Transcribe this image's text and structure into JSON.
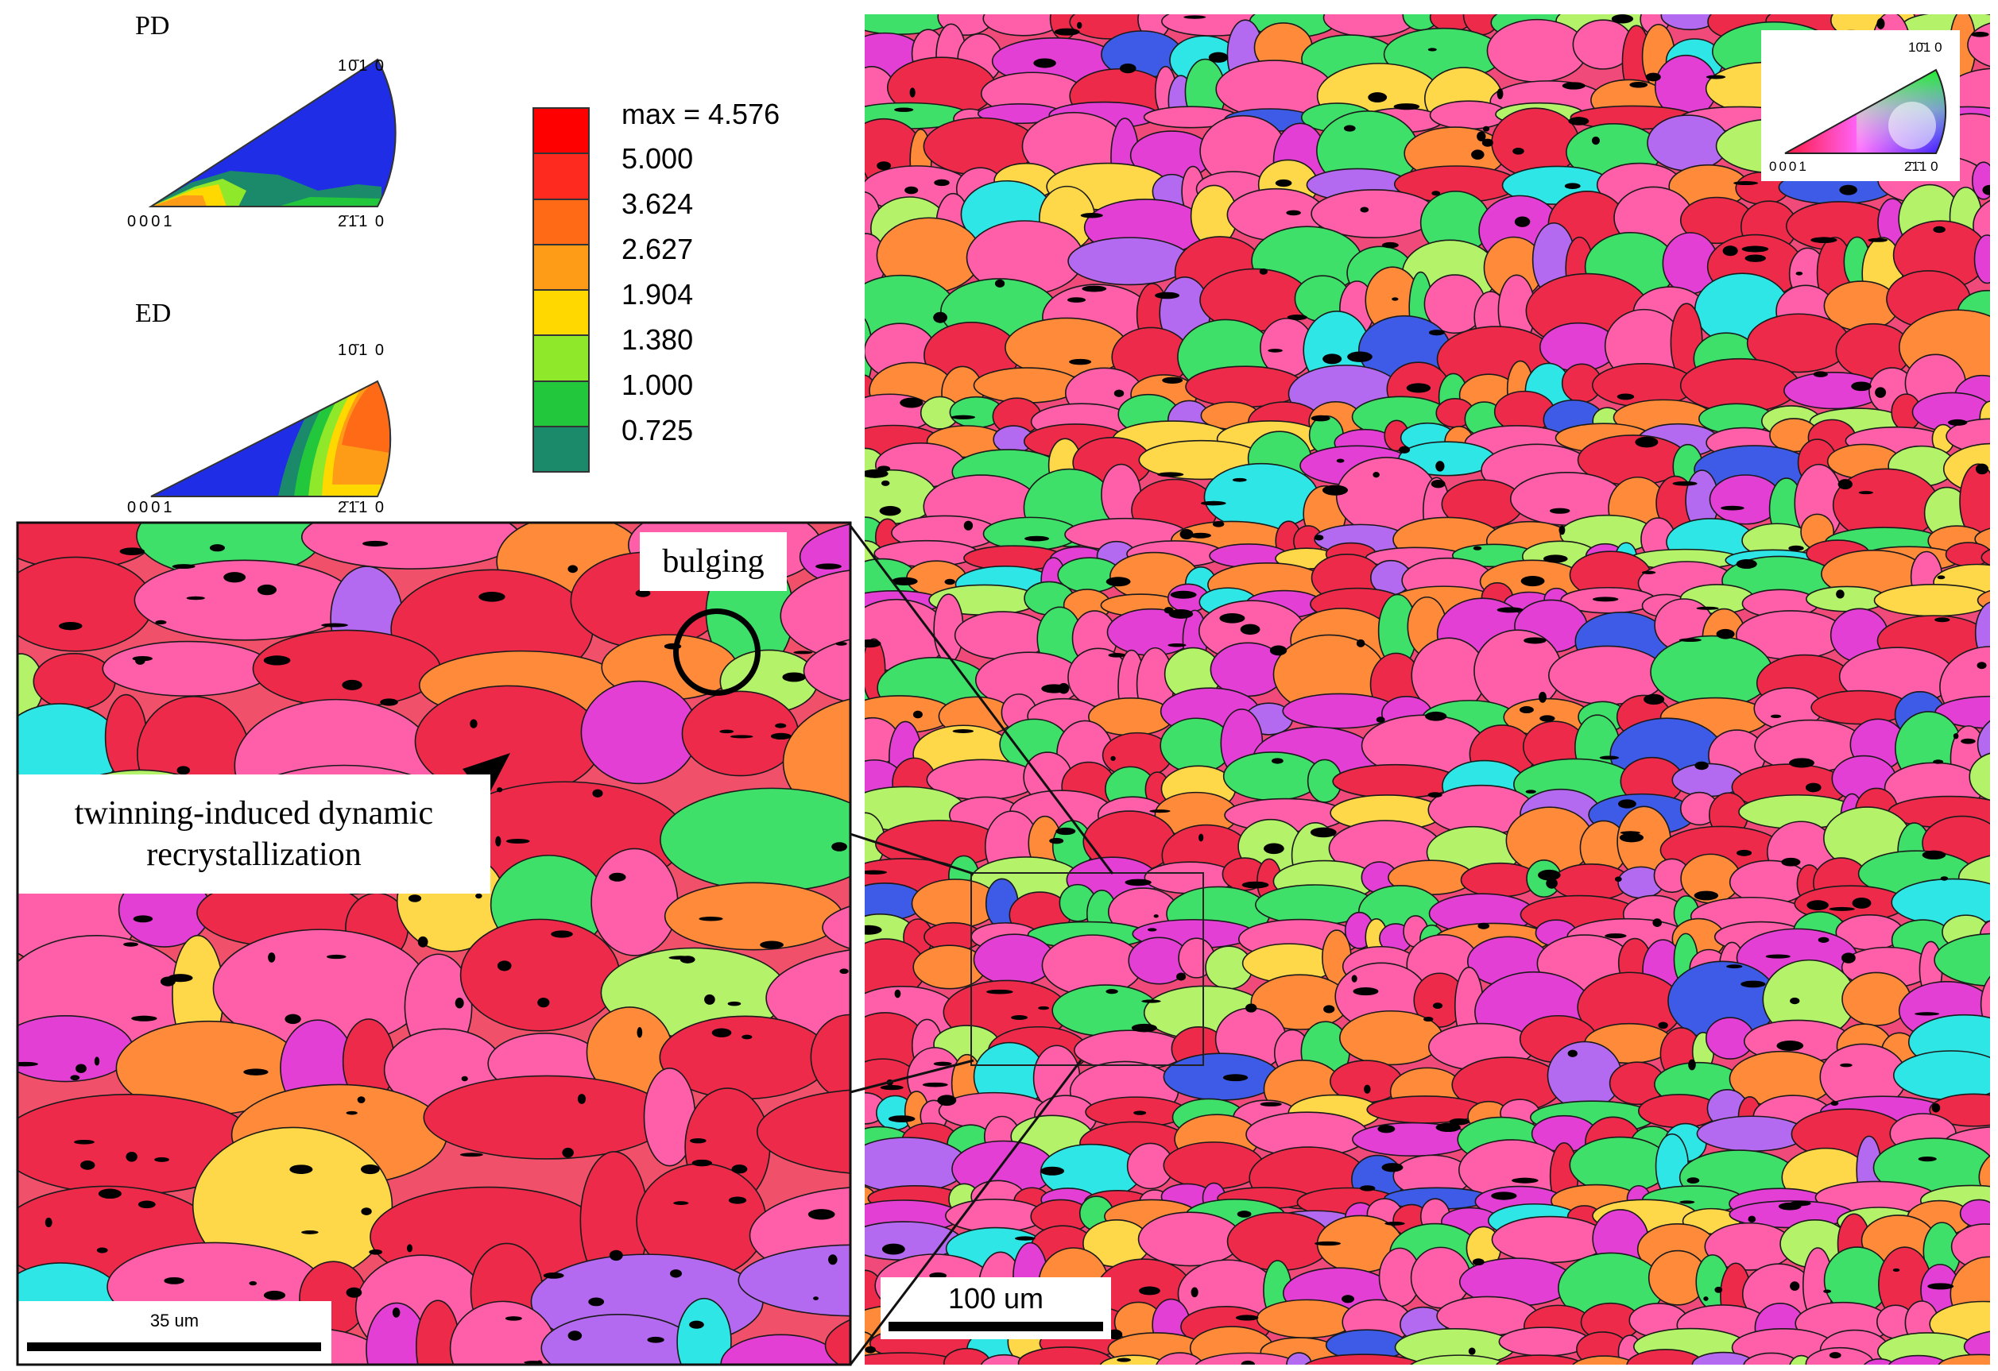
{
  "ipf_top_left": {
    "pd_label": "PD",
    "ed_label": "ED",
    "corner_left": "0001",
    "corner_top": "10̄1 0",
    "corner_right": "2̄1̄1 0"
  },
  "legend": {
    "max_label": "max = 4.576",
    "levels": [
      {
        "value": "5.000",
        "color": "#ff2a1f"
      },
      {
        "value": "3.624",
        "color": "#ff6a17"
      },
      {
        "value": "2.627",
        "color": "#ff9c17"
      },
      {
        "value": "1.904",
        "color": "#ffd800"
      },
      {
        "value": "1.380",
        "color": "#8fe829"
      },
      {
        "value": "1.000",
        "color": "#22c73b"
      },
      {
        "value": "0.725",
        "color": "#1b8a6b"
      },
      {
        "value": "",
        "color": "#1f2de6"
      }
    ],
    "top_color": "#ff0000"
  },
  "ipf_key": {
    "corner_left": "0001",
    "corner_top": "10̄1 0",
    "corner_right": "2̄1̄1 0"
  },
  "annotations": {
    "bulging": "bulging",
    "twinning_line1": "twinning-induced dynamic",
    "twinning_line2": "recrystallization"
  },
  "scalebars": {
    "zoom": "35 um",
    "main": "100 um"
  },
  "colors": {
    "red": "#ee2a4a",
    "pink": "#ff5fa8",
    "magenta": "#e33fd4",
    "orange": "#ff8a3a",
    "yellow": "#ffd84a",
    "green": "#3fe06a",
    "lime": "#b4f26a",
    "cyan": "#2fe6e6",
    "blue": "#3d5be6",
    "purple": "#b46af0"
  }
}
